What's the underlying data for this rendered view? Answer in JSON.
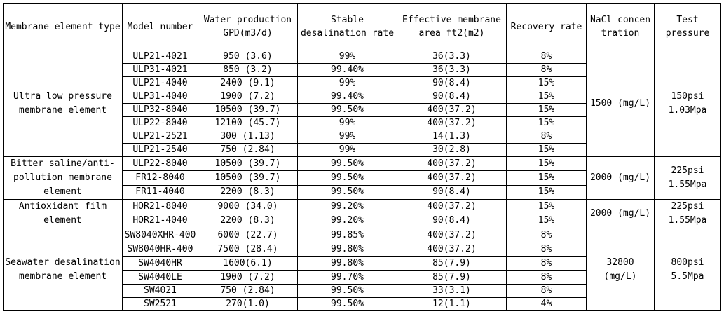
{
  "headers": {
    "type": "Membrane element type",
    "model": "Model number",
    "gpd": "Water production GPD(m3/d)",
    "rate": "Stable desalination rate",
    "area": "Effective membrane area ft2(m2)",
    "recovery": "Recovery rate",
    "nacl": "NaCl concentration",
    "pressure": "Test pressure"
  },
  "groups": [
    {
      "type": "Ultra low pressure membrane element",
      "nacl": "1500 (mg/L)",
      "pressure": "150psi\n1.03Mpa",
      "rows": [
        {
          "model": "ULP21-4021",
          "gpd": "950 (3.6)",
          "rate": "99%",
          "area": "36(3.3)",
          "recovery": "8%"
        },
        {
          "model": "ULP31-4021",
          "gpd": "850 (3.2)",
          "rate": "99.40%",
          "area": "36(3.3)",
          "recovery": "8%"
        },
        {
          "model": "ULP21-4040",
          "gpd": "2400 (9.1)",
          "rate": "99%",
          "area": "90(8.4)",
          "recovery": "15%"
        },
        {
          "model": "ULP31-4040",
          "gpd": "1900 (7.2)",
          "rate": "99.40%",
          "area": "90(8.4)",
          "recovery": "15%"
        },
        {
          "model": "ULP32-8040",
          "gpd": "10500 (39.7)",
          "rate": "99.50%",
          "area": "400(37.2)",
          "recovery": "15%"
        },
        {
          "model": "ULP22-8040",
          "gpd": "12100 (45.7)",
          "rate": "99%",
          "area": "400(37.2)",
          "recovery": "15%"
        },
        {
          "model": "ULP21-2521",
          "gpd": "300 (1.13)",
          "rate": "99%",
          "area": "14(1.3)",
          "recovery": "8%"
        },
        {
          "model": "ULP21-2540",
          "gpd": "750 (2.84)",
          "rate": "99%",
          "area": "30(2.8)",
          "recovery": "15%"
        }
      ]
    },
    {
      "type": "Bitter saline/anti-pollution membrane element",
      "nacl": "2000 (mg/L)",
      "pressure": "225psi\n1.55Mpa",
      "rows": [
        {
          "model": "ULP22-8040",
          "gpd": "10500 (39.7)",
          "rate": "99.50%",
          "area": "400(37.2)",
          "recovery": "15%"
        },
        {
          "model": "FR12-8040",
          "gpd": "10500 (39.7)",
          "rate": "99.50%",
          "area": "400(37.2)",
          "recovery": "15%"
        },
        {
          "model": "FR11-4040",
          "gpd": "2200 (8.3)",
          "rate": "99.50%",
          "area": "90(8.4)",
          "recovery": "15%"
        }
      ]
    },
    {
      "type": "Antioxidant film element",
      "nacl": "2000 (mg/L)",
      "pressure": "225psi\n1.55Mpa",
      "rows": [
        {
          "model": "HOR21-8040",
          "gpd": "9000 (34.0)",
          "rate": "99.20%",
          "area": "400(37.2)",
          "recovery": "15%"
        },
        {
          "model": "HOR21-4040",
          "gpd": "2200 (8.3)",
          "rate": "99.20%",
          "area": "90(8.4)",
          "recovery": "15%"
        }
      ]
    },
    {
      "type": "Seawater desalination membrane element",
      "nacl": "32800\n(mg/L)",
      "pressure": "800psi\n5.5Mpa",
      "rows": [
        {
          "model": "SW8040XHR-400",
          "gpd": "6000 (22.7)",
          "rate": "99.85%",
          "area": "400(37.2)",
          "recovery": "8%"
        },
        {
          "model": "SW8040HR-400",
          "gpd": "7500 (28.4)",
          "rate": "99.80%",
          "area": "400(37.2)",
          "recovery": "8%"
        },
        {
          "model": "SW4040HR",
          "gpd": "1600(6.1)",
          "rate": "99.80%",
          "area": "85(7.9)",
          "recovery": "8%"
        },
        {
          "model": "SW4040LE",
          "gpd": "1900 (7.2)",
          "rate": "99.70%",
          "area": "85(7.9)",
          "recovery": "8%"
        },
        {
          "model": "SW4021",
          "gpd": "750 (2.84)",
          "rate": "99.50%",
          "area": "33(3.1)",
          "recovery": "8%"
        },
        {
          "model": "SW2521",
          "gpd": "270(1.0)",
          "rate": "99.50%",
          "area": "12(1.1)",
          "recovery": "4%"
        }
      ]
    }
  ]
}
